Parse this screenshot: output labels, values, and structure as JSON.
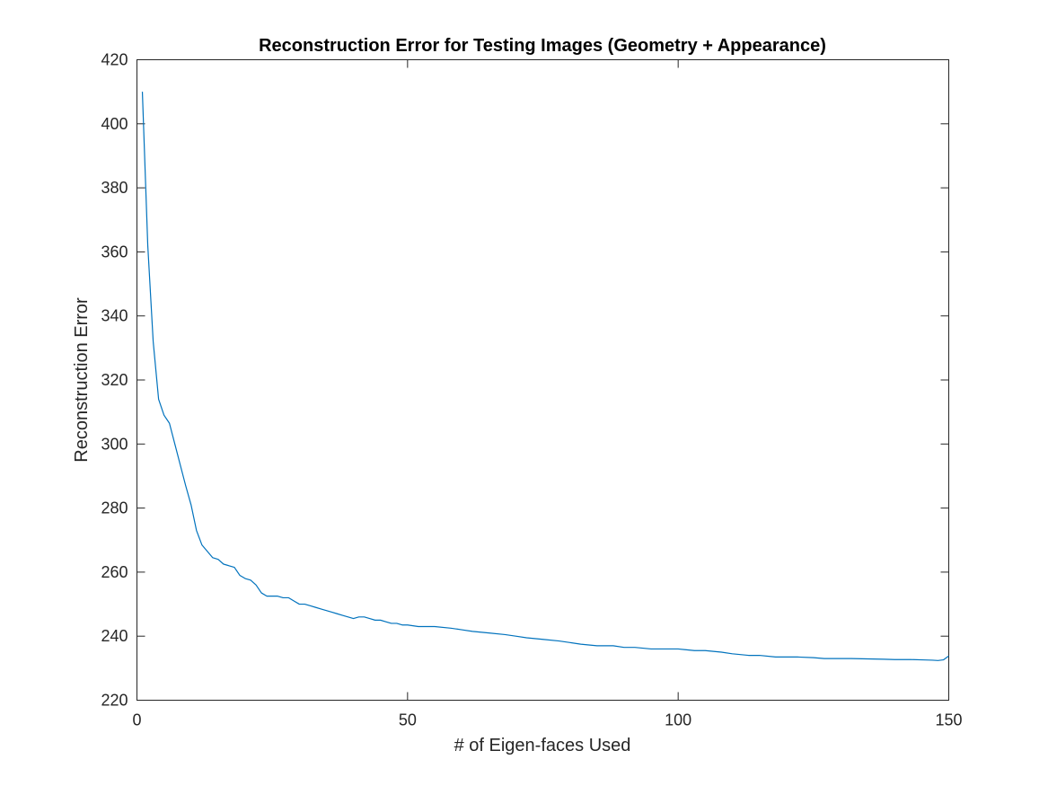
{
  "chart_data": {
    "type": "line",
    "title": "Reconstruction Error for Testing Images (Geometry + Appearance)",
    "xlabel": "# of Eigen-faces Used",
    "ylabel": "Reconstruction Error",
    "xlim": [
      0,
      150
    ],
    "ylim": [
      220,
      420
    ],
    "xticks": [
      0,
      50,
      100,
      150
    ],
    "yticks": [
      220,
      240,
      260,
      280,
      300,
      320,
      340,
      360,
      380,
      400,
      420
    ],
    "xtick_labels": [
      "0",
      "50",
      "100",
      "150"
    ],
    "ytick_labels": [
      "220",
      "240",
      "260",
      "280",
      "300",
      "320",
      "340",
      "360",
      "380",
      "400",
      "420"
    ],
    "grid": false,
    "box": true,
    "series": [
      {
        "color": "#0072BD",
        "x": [
          1,
          2,
          3,
          4,
          5,
          6,
          7,
          8,
          9,
          10,
          11,
          12,
          13,
          14,
          15,
          16,
          17,
          18,
          19,
          20,
          21,
          22,
          23,
          24,
          25,
          26,
          27,
          28,
          29,
          30,
          31,
          32,
          33,
          34,
          35,
          36,
          37,
          38,
          39,
          40,
          41,
          42,
          43,
          44,
          45,
          46,
          47,
          48,
          49,
          50,
          52,
          55,
          58,
          60,
          62,
          65,
          68,
          70,
          72,
          75,
          78,
          80,
          82,
          85,
          88,
          90,
          92,
          95,
          98,
          100,
          103,
          105,
          108,
          110,
          113,
          115,
          118,
          120,
          122,
          125,
          127,
          128,
          130,
          132,
          135,
          138,
          140,
          143,
          145,
          147,
          148,
          149,
          150
        ],
        "y": [
          410,
          362,
          332,
          314,
          309,
          306.5,
          300,
          293.5,
          287,
          281,
          273,
          268.5,
          266.5,
          264.5,
          264,
          262.5,
          262,
          261.5,
          259,
          258,
          257.5,
          256,
          253.5,
          252.5,
          252.5,
          252.5,
          252,
          252,
          251,
          250,
          250,
          249.5,
          249,
          248.5,
          248,
          247.5,
          247,
          246.5,
          246,
          245.5,
          246,
          246,
          245.5,
          245,
          245,
          244.5,
          244,
          244,
          243.5,
          243.5,
          243,
          243,
          242.5,
          242,
          241.5,
          241,
          240.5,
          240,
          239.5,
          239,
          238.5,
          238,
          237.5,
          237,
          237,
          236.5,
          236.5,
          236,
          236,
          236,
          235.5,
          235.5,
          235,
          234.5,
          234,
          234,
          233.5,
          233.5,
          233.5,
          233.3,
          233,
          233,
          233,
          233,
          232.9,
          232.8,
          232.7,
          232.7,
          232.6,
          232.5,
          232.4,
          232.6,
          233.8
        ]
      }
    ]
  }
}
